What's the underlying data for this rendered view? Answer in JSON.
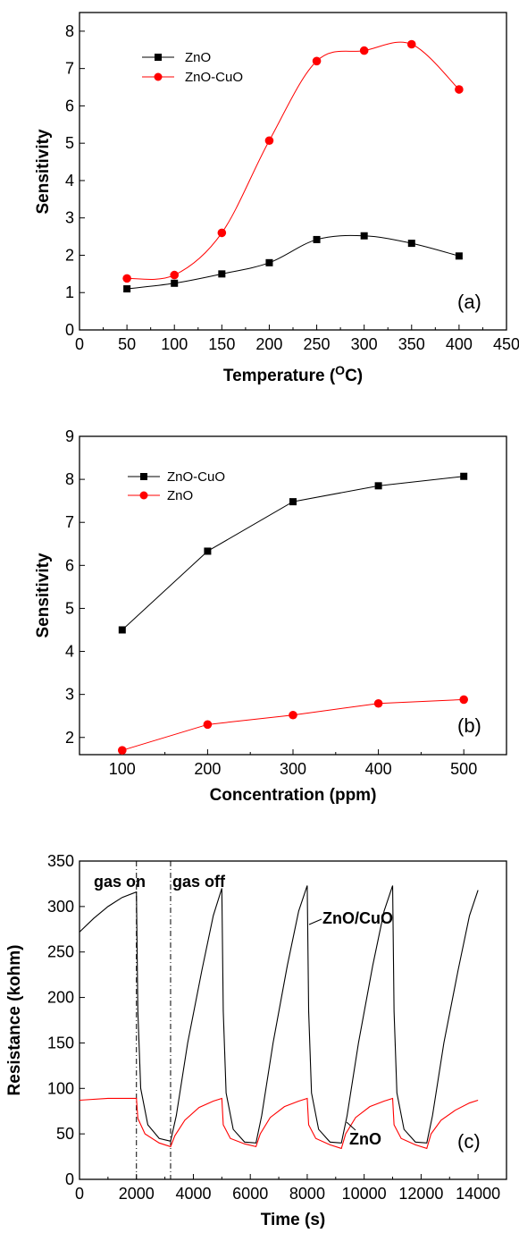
{
  "chart_data": [
    {
      "panel": "(a)",
      "type": "line",
      "xlabel": "Temperature (",
      "xlabel_unit": "O",
      "xlabel_tail": "C)",
      "ylabel": "Sensitivity",
      "xlim": [
        0,
        450
      ],
      "ylim": [
        0,
        8.5
      ],
      "x_ticks": [
        0,
        50,
        100,
        150,
        200,
        250,
        300,
        350,
        400,
        450
      ],
      "y_ticks": [
        0,
        1,
        2,
        3,
        4,
        5,
        6,
        7,
        8
      ],
      "legend": "top-left",
      "grid": false,
      "series": [
        {
          "name": "ZnO",
          "color": "#000000",
          "marker": "square",
          "x": [
            50,
            100,
            150,
            200,
            250,
            300,
            350,
            400
          ],
          "y": [
            1.1,
            1.25,
            1.5,
            1.8,
            2.42,
            2.52,
            2.32,
            1.98
          ]
        },
        {
          "name": "ZnO-CuO",
          "color": "#ff0000",
          "marker": "circle",
          "x": [
            50,
            100,
            150,
            200,
            250,
            300,
            350,
            400
          ],
          "y": [
            1.38,
            1.47,
            2.6,
            5.07,
            7.2,
            7.48,
            7.65,
            6.44
          ]
        }
      ]
    },
    {
      "panel": "(b)",
      "type": "line",
      "xlabel": "Concentration (ppm)",
      "ylabel": "Sensitivity",
      "xlim": [
        50,
        550
      ],
      "ylim": [
        1.6,
        9
      ],
      "x_ticks": [
        100,
        200,
        300,
        400,
        500
      ],
      "y_ticks": [
        2,
        3,
        4,
        5,
        6,
        7,
        8,
        9
      ],
      "legend": "top-left",
      "grid": false,
      "series": [
        {
          "name": "ZnO-CuO",
          "color": "#000000",
          "marker": "square",
          "x": [
            100,
            200,
            300,
            400,
            500
          ],
          "y": [
            4.5,
            6.33,
            7.48,
            7.85,
            8.07
          ]
        },
        {
          "name": "ZnO",
          "color": "#ff0000",
          "marker": "circle",
          "x": [
            100,
            200,
            300,
            400,
            500
          ],
          "y": [
            1.7,
            2.3,
            2.52,
            2.79,
            2.88
          ]
        }
      ]
    },
    {
      "panel": "(c)",
      "type": "line",
      "xlabel": "Time (s)",
      "ylabel": "Resistance (kohm)",
      "xlim": [
        0,
        15000
      ],
      "ylim": [
        0,
        350
      ],
      "x_ticks": [
        0,
        2000,
        4000,
        6000,
        8000,
        10000,
        12000,
        14000
      ],
      "y_ticks": [
        0,
        50,
        100,
        150,
        200,
        250,
        300,
        350
      ],
      "grid": false,
      "annotations": [
        "gas on",
        "gas off",
        "ZnO/CuO",
        "ZnO"
      ],
      "markers_at_time": [
        2000,
        3200
      ],
      "series": [
        {
          "name": "ZnO/CuO",
          "color": "#000000",
          "x": [
            0,
            500,
            1000,
            1500,
            2000,
            2050,
            2150,
            2400,
            2800,
            3200,
            3400,
            3800,
            4300,
            4700,
            5000,
            5050,
            5150,
            5400,
            5800,
            6200,
            6400,
            6800,
            7300,
            7700,
            8000,
            8050,
            8150,
            8400,
            8800,
            9200,
            9400,
            9800,
            10300,
            10700,
            11000,
            11050,
            11150,
            11400,
            11800,
            12200,
            12400,
            12800,
            13300,
            13700,
            14000
          ],
          "y": [
            272,
            287,
            300,
            310,
            316,
            185,
            100,
            60,
            45,
            42,
            70,
            150,
            230,
            290,
            320,
            185,
            95,
            55,
            41,
            40,
            70,
            150,
            235,
            295,
            323,
            185,
            95,
            55,
            41,
            40,
            70,
            150,
            235,
            295,
            323,
            185,
            95,
            55,
            41,
            40,
            70,
            150,
            230,
            290,
            318
          ]
        },
        {
          "name": "ZnO",
          "color": "#ff0000",
          "x": [
            0,
            1000,
            2000,
            2050,
            2300,
            2800,
            3200,
            3350,
            3700,
            4200,
            4700,
            5000,
            5050,
            5300,
            5800,
            6200,
            6350,
            6700,
            7200,
            7700,
            8000,
            8050,
            8300,
            8800,
            9200,
            9350,
            9700,
            10200,
            10700,
            11000,
            11050,
            11300,
            11800,
            12200,
            12350,
            12700,
            13200,
            13700,
            14000
          ],
          "y": [
            87,
            89,
            89,
            67,
            50,
            40,
            36,
            48,
            65,
            79,
            86,
            89,
            60,
            45,
            39,
            36,
            50,
            68,
            80,
            86,
            89,
            60,
            45,
            38,
            34,
            50,
            68,
            80,
            86,
            89,
            60,
            45,
            38,
            34,
            50,
            65,
            76,
            84,
            87
          ]
        }
      ],
      "panel_tag": "(c)"
    }
  ]
}
